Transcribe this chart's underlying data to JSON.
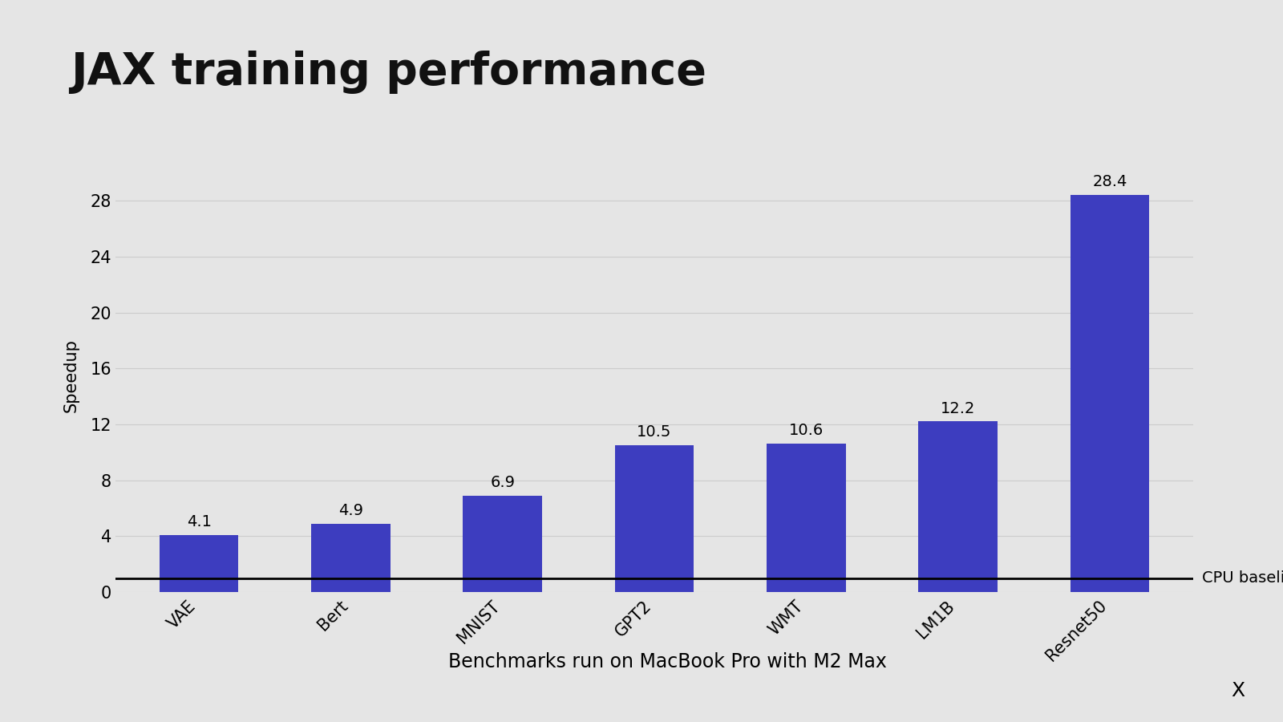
{
  "title": "JAX training performance",
  "xlabel": "Benchmarks run on MacBook Pro with M2 Max",
  "ylabel": "Speedup",
  "categories": [
    "VAE",
    "Bert",
    "MNIST",
    "GPT2",
    "WMT",
    "LM1B",
    "Resnet50"
  ],
  "values": [
    4.1,
    4.9,
    6.9,
    10.5,
    10.6,
    12.2,
    28.4
  ],
  "bar_color": "#3d3dbf",
  "background_color": "#e5e5e5",
  "yticks": [
    0,
    4,
    8,
    12,
    16,
    20,
    24,
    28
  ],
  "ylim": [
    0,
    31
  ],
  "baseline_label": "CPU baseline",
  "watermark": "X",
  "title_fontsize": 40,
  "xlabel_fontsize": 17,
  "ylabel_fontsize": 15,
  "tick_fontsize": 15,
  "label_fontsize": 14,
  "baseline_y": 1.0,
  "grid_color": "#cccccc",
  "grid_linewidth": 0.8
}
